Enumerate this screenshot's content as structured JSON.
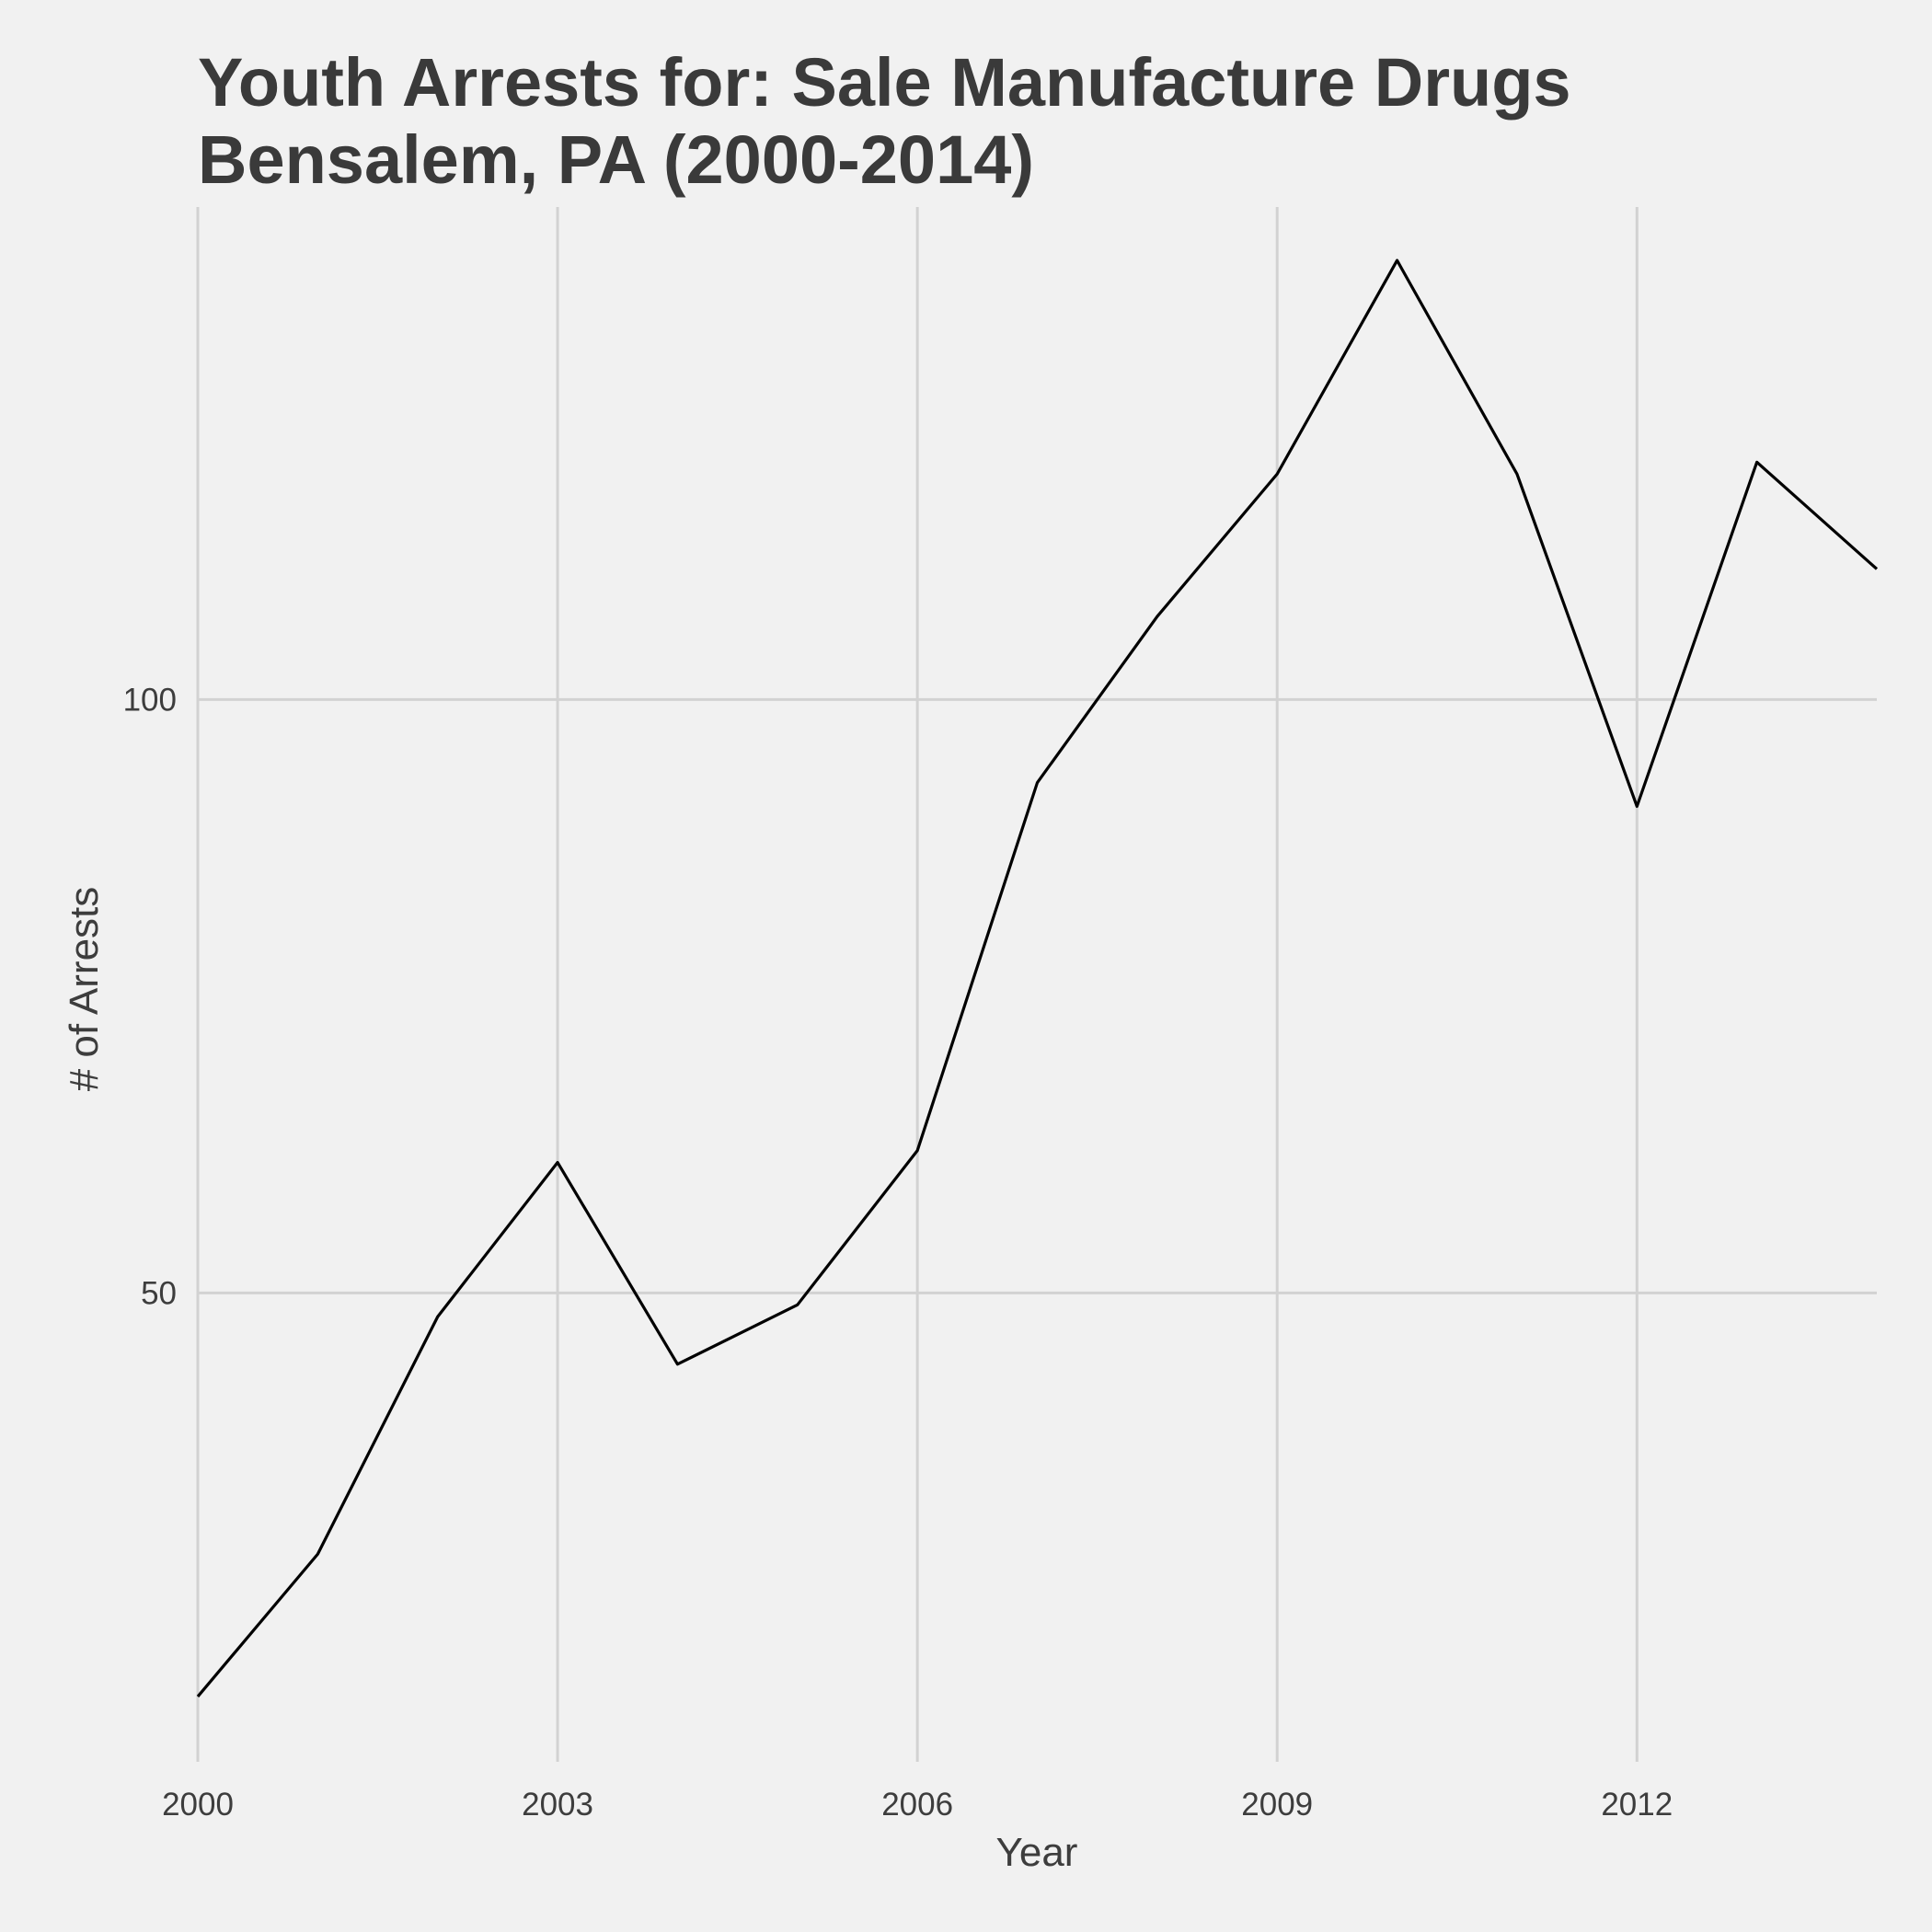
{
  "chart_data": {
    "type": "line",
    "title": [
      "Youth Arrests for: Sale Manufacture Drugs",
      "Bensalem, PA (2000-2014)"
    ],
    "xlabel": "Year",
    "ylabel": "# of Arrests",
    "x": [
      2000,
      2001,
      2002,
      2003,
      2004,
      2005,
      2006,
      2007,
      2008,
      2009,
      2010,
      2011,
      2012,
      2013,
      2014
    ],
    "series": [
      {
        "values": [
          16,
          28,
          48,
          61,
          44,
          49,
          62,
          93,
          107,
          119,
          137,
          119,
          91,
          120,
          111
        ]
      }
    ],
    "xlim": [
      2000,
      2014
    ],
    "ylim": [
      10.5,
      141.5
    ],
    "xticks": [
      "2000",
      "2003",
      "2006",
      "2009",
      "2012"
    ],
    "yticks": [
      "50",
      "100"
    ],
    "grid": true,
    "line_color": "#000000",
    "background_color": "#f1f1f1",
    "grid_color": "#d2d2d2"
  }
}
